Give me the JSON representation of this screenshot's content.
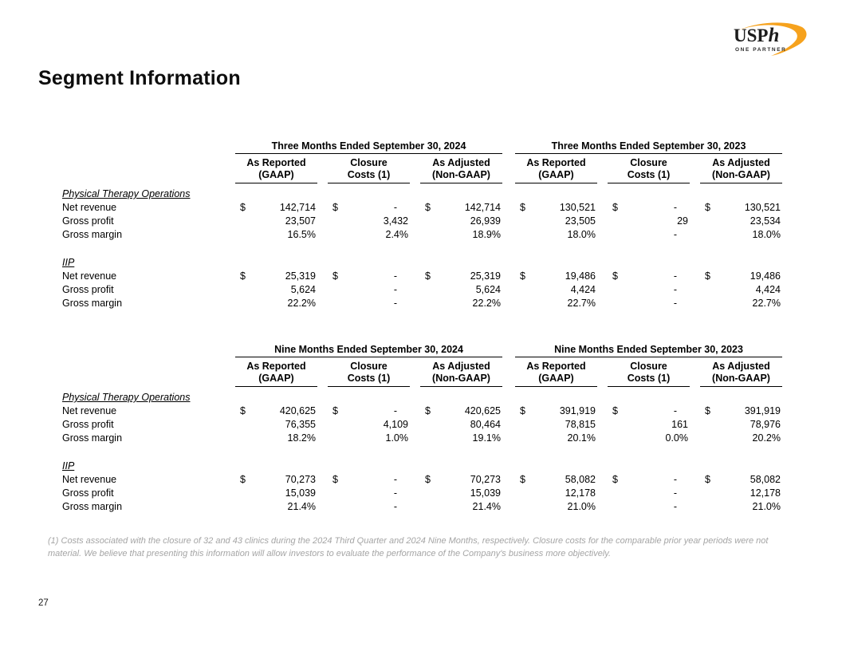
{
  "page": {
    "title": "Segment Information",
    "page_number": "27",
    "footnote": "(1)   Costs associated with the closure of 32 and 43 clinics during the 2024 Third Quarter and 2024 Nine Months, respectively.  Closure costs for the comparable prior year periods were not material.  We believe that presenting this information will allow investors to evaluate the performance of the Company's business more objectively."
  },
  "logo": {
    "text_main": "USP",
    "text_italic": "h",
    "tagline": "ONE PARTNER",
    "swoosh_color": "#F6A21D"
  },
  "tables": [
    {
      "groups": [
        "Three Months Ended September 30, 2024",
        "Three Months Ended September 30, 2023"
      ],
      "columns": [
        {
          "line1": "As Reported",
          "line2": "(GAAP)"
        },
        {
          "line1": "Closure",
          "line2": "Costs (1)"
        },
        {
          "line1": "As Adjusted",
          "line2": "(Non-GAAP)"
        }
      ],
      "sections": [
        {
          "name": "Physical Therapy Operations",
          "rows": [
            {
              "label": "Net revenue",
              "dollar": true,
              "values": [
                "142,714",
                "-",
                "142,714",
                "130,521",
                "-",
                "130,521"
              ]
            },
            {
              "label": "Gross profit",
              "dollar": false,
              "values": [
                "23,507",
                "3,432",
                "26,939",
                "23,505",
                "29",
                "23,534"
              ]
            },
            {
              "label": "Gross margin",
              "dollar": false,
              "values": [
                "16.5%",
                "2.4%",
                "18.9%",
                "18.0%",
                "-",
                "18.0%"
              ]
            }
          ]
        },
        {
          "name": "IIP",
          "rows": [
            {
              "label": "Net revenue",
              "dollar": true,
              "values": [
                "25,319",
                "-",
                "25,319",
                "19,486",
                "-",
                "19,486"
              ]
            },
            {
              "label": "Gross profit",
              "dollar": false,
              "values": [
                "5,624",
                "-",
                "5,624",
                "4,424",
                "-",
                "4,424"
              ]
            },
            {
              "label": "Gross margin",
              "dollar": false,
              "values": [
                "22.2%",
                "-",
                "22.2%",
                "22.7%",
                "-",
                "22.7%"
              ]
            }
          ]
        }
      ]
    },
    {
      "groups": [
        "Nine Months Ended September 30, 2024",
        "Nine Months Ended September 30, 2023"
      ],
      "columns": [
        {
          "line1": "As Reported",
          "line2": "(GAAP)"
        },
        {
          "line1": "Closure",
          "line2": "Costs (1)"
        },
        {
          "line1": "As Adjusted",
          "line2": "(Non-GAAP)"
        }
      ],
      "sections": [
        {
          "name": "Physical Therapy Operations",
          "rows": [
            {
              "label": "Net revenue",
              "dollar": true,
              "values": [
                "420,625",
                "-",
                "420,625",
                "391,919",
                "-",
                "391,919"
              ]
            },
            {
              "label": "Gross profit",
              "dollar": false,
              "values": [
                "76,355",
                "4,109",
                "80,464",
                "78,815",
                "161",
                "78,976"
              ]
            },
            {
              "label": "Gross margin",
              "dollar": false,
              "values": [
                "18.2%",
                "1.0%",
                "19.1%",
                "20.1%",
                "0.0%",
                "20.2%"
              ]
            }
          ]
        },
        {
          "name": "IIP",
          "rows": [
            {
              "label": "Net revenue",
              "dollar": true,
              "values": [
                "70,273",
                "-",
                "70,273",
                "58,082",
                "-",
                "58,082"
              ]
            },
            {
              "label": "Gross profit",
              "dollar": false,
              "values": [
                "15,039",
                "-",
                "15,039",
                "12,178",
                "-",
                "12,178"
              ]
            },
            {
              "label": "Gross margin",
              "dollar": false,
              "values": [
                "21.4%",
                "-",
                "21.4%",
                "21.0%",
                "-",
                "21.0%"
              ]
            }
          ]
        }
      ]
    }
  ]
}
